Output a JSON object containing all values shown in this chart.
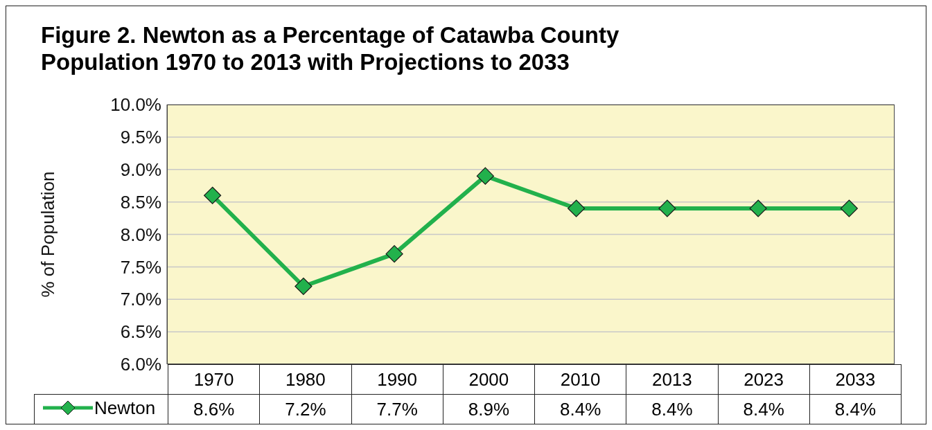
{
  "chart_data": {
    "type": "line",
    "title": "Figure 2.  Newton as a Percentage of Catawba County Population 1970 to 2013 with Projections to 2033",
    "ylabel": "% of Population",
    "categories": [
      "1970",
      "1980",
      "1990",
      "2000",
      "2010",
      "2013",
      "2023",
      "2033"
    ],
    "series": [
      {
        "name": "Newton",
        "color": "#22b14c",
        "values": [
          8.6,
          7.2,
          7.7,
          8.9,
          8.4,
          8.4,
          8.4,
          8.4
        ],
        "value_labels": [
          "8.6%",
          "7.2%",
          "7.7%",
          "8.9%",
          "8.4%",
          "8.4%",
          "8.4%",
          "8.4%"
        ]
      }
    ],
    "ylim": [
      6,
      10
    ],
    "yticks": [
      {
        "value": 6,
        "label": "6.0%"
      },
      {
        "value": 6.5,
        "label": "6.5%"
      },
      {
        "value": 7,
        "label": "7.0%"
      },
      {
        "value": 7.5,
        "label": "7.5%"
      },
      {
        "value": 8,
        "label": "8.0%"
      },
      {
        "value": 8.5,
        "label": "8.5%"
      },
      {
        "value": 9,
        "label": "9.0%"
      },
      {
        "value": 9.5,
        "label": "9.5%"
      },
      {
        "value": 10,
        "label": "10.0%"
      }
    ],
    "grid": "y",
    "legend": "bottom",
    "marker": "diamond",
    "line_style": "solid"
  }
}
